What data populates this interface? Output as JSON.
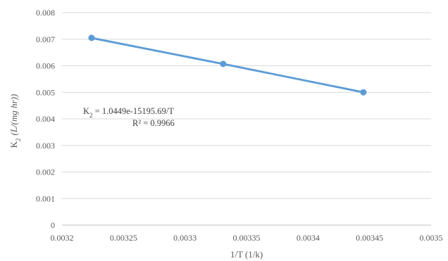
{
  "chart_data": {
    "type": "scatter",
    "xlabel": "1/T (1/k)",
    "ylabel_main": "K",
    "ylabel_sub": "2",
    "ylabel_units": "(L/(mg hr))",
    "xlim": [
      0.0032,
      0.0035
    ],
    "ylim": [
      0,
      0.008
    ],
    "x_ticks": [
      0.0032,
      0.00325,
      0.0033,
      0.00335,
      0.0034,
      0.00345,
      0.0035
    ],
    "x_tick_labels": [
      "0.0032",
      "0.00325",
      "0.0033",
      "0.00335",
      "0.0034",
      "0.00345",
      "0.0035"
    ],
    "y_ticks": [
      0,
      0.001,
      0.002,
      0.003,
      0.004,
      0.005,
      0.006,
      0.007,
      0.008
    ],
    "y_tick_labels": [
      "0",
      "0.001",
      "0.002",
      "0.003",
      "0.004",
      "0.005",
      "0.006",
      "0.007",
      "0.008"
    ],
    "grid": "horizontal",
    "series": [
      {
        "x": [
          0.003224,
          0.003331,
          0.003445
        ],
        "y": [
          0.00705,
          0.00607,
          0.005
        ],
        "color": "#5b9bd5",
        "connected": true
      }
    ],
    "trendline": {
      "style": "dotted",
      "color": "#5b9bd5",
      "x": [
        0.003224,
        0.003445
      ],
      "y": [
        0.00703,
        0.00502
      ]
    },
    "annotation": {
      "line1_prefix": "K",
      "line1_sub": "2",
      "line1_rest": " = 1.0449e-15195.69/T",
      "line2": "R² = 0.9966"
    }
  }
}
